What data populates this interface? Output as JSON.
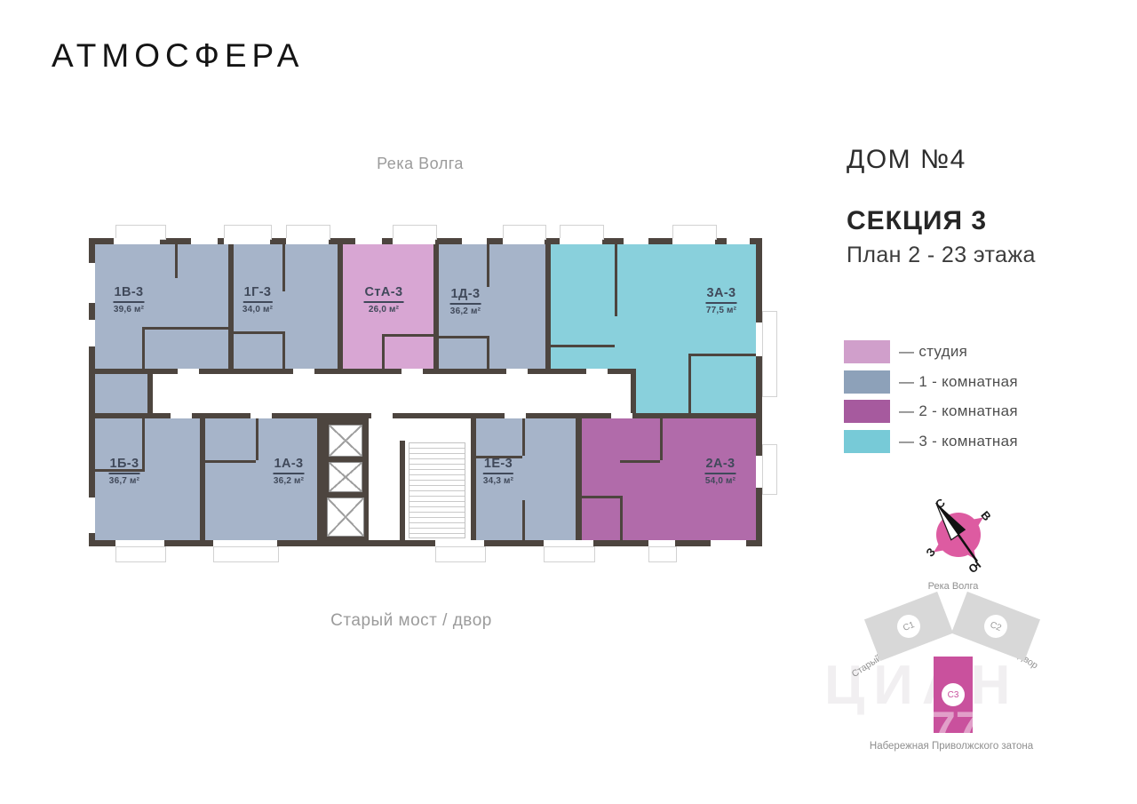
{
  "brand": {
    "logo_text": "АТМОСФЕРА"
  },
  "plan": {
    "top_label": "Река Волга",
    "bottom_label": "Старый мост / двор",
    "apartments": [
      {
        "id": "1В-3",
        "area": "39,6 м²",
        "color": "#a6b4c9"
      },
      {
        "id": "1Г-3",
        "area": "34,0 м²",
        "color": "#a6b4c9"
      },
      {
        "id": "СтА-3",
        "area": "26,0 м²",
        "color": "#d8a6d3"
      },
      {
        "id": "1Д-3",
        "area": "36,2 м²",
        "color": "#a6b4c9"
      },
      {
        "id": "3А-3",
        "area": "77,5 м²",
        "color": "#89d0dc"
      },
      {
        "id": "1Б-3",
        "area": "36,7 м²",
        "color": "#a6b4c9"
      },
      {
        "id": "1А-3",
        "area": "36,2 м²",
        "color": "#a6b4c9"
      },
      {
        "id": "1Е-3",
        "area": "34,3 м²",
        "color": "#a6b4c9"
      },
      {
        "id": "2А-3",
        "area": "54,0 м²",
        "color": "#b16baa"
      }
    ]
  },
  "header": {
    "house": "ДОМ №4",
    "section": "СЕКЦИЯ 3",
    "floors": "План 2 - 23 этажа"
  },
  "legend": {
    "items": [
      {
        "label": "— студия",
        "color": "#d09fcb"
      },
      {
        "label": "— 1 - комнатная",
        "color": "#8da1b9"
      },
      {
        "label": "— 2 - комнатная",
        "color": "#a65a9e"
      },
      {
        "label": "— 3 - комнатная",
        "color": "#77cad7"
      }
    ]
  },
  "compass": {
    "north": "С",
    "east": "В",
    "west": "З",
    "south": "Ю",
    "color": "#dd5ba1"
  },
  "site_map": {
    "top_label": "Река Волга",
    "left_label": "Старый мост / двор",
    "right_label": "Город / двор",
    "bottom_label": "Набережная Приволжского затона",
    "sections": [
      {
        "label": "С1"
      },
      {
        "label": "С2"
      },
      {
        "label": "С3"
      }
    ],
    "active_color": "#c9519d",
    "inactive_color": "#d8d8d8"
  },
  "watermark": {
    "text": "ЦИАН",
    "number": "77"
  }
}
